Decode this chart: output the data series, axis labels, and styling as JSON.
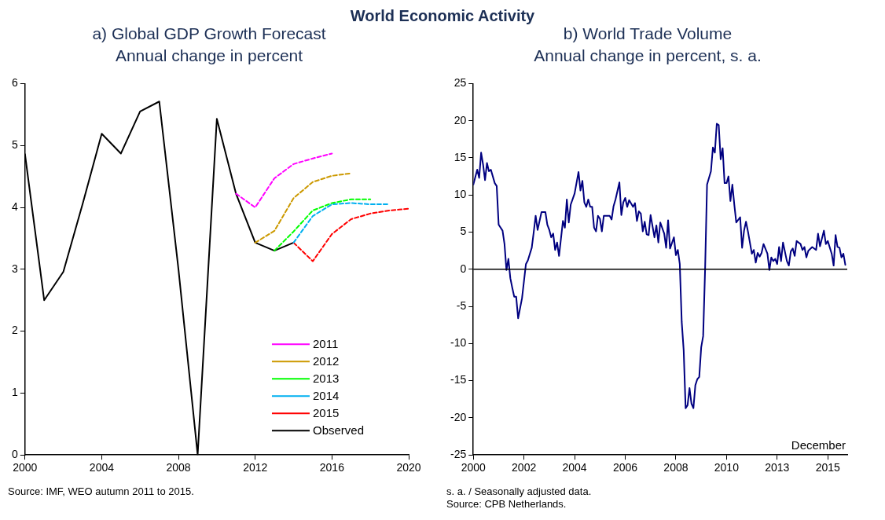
{
  "chart_data": [
    {
      "type": "other",
      "title": "World Economic Activity"
    },
    {
      "type": "line",
      "title": "a) Global GDP Growth Forecast",
      "subtitle": "Annual change in percent",
      "xlim": [
        2000,
        2020
      ],
      "xticks": [
        2000,
        2004,
        2008,
        2012,
        2016,
        2020
      ],
      "ylim": [
        0,
        6
      ],
      "yticks": [
        0,
        1,
        2,
        3,
        4,
        5,
        6
      ],
      "grid": false,
      "legend": "bottom right",
      "marker": "none",
      "series": [
        {
          "name": "2011",
          "color": "#ff00ff",
          "line_style": "dashed",
          "x": [
            2011,
            2012,
            2013,
            2014,
            2015,
            2016
          ],
          "values": [
            4.22,
            4.0,
            4.47,
            4.7,
            4.79,
            4.87
          ]
        },
        {
          "name": "2012",
          "color": "#cc9900",
          "line_style": "dashed",
          "x": [
            2012,
            2013,
            2014,
            2015,
            2016,
            2017
          ],
          "values": [
            3.43,
            3.62,
            4.15,
            4.41,
            4.51,
            4.55
          ]
        },
        {
          "name": "2013",
          "color": "#00ff00",
          "line_style": "dashed",
          "x": [
            2013,
            2014,
            2015,
            2016,
            2017,
            2018
          ],
          "values": [
            3.3,
            3.61,
            3.95,
            4.07,
            4.13,
            4.13
          ]
        },
        {
          "name": "2014",
          "color": "#00b0f0",
          "line_style": "dashed",
          "x": [
            2014,
            2015,
            2016,
            2017,
            2018,
            2019
          ],
          "values": [
            3.43,
            3.86,
            4.05,
            4.07,
            4.05,
            4.05
          ]
        },
        {
          "name": "2015",
          "color": "#ff0000",
          "line_style": "dashed",
          "x": [
            2014,
            2015,
            2016,
            2017,
            2018,
            2019,
            2020
          ],
          "values": [
            3.43,
            3.13,
            3.57,
            3.81,
            3.9,
            3.95,
            3.98
          ]
        },
        {
          "name": "Observed",
          "color": "#000000",
          "line_style": "solid",
          "x": [
            2000,
            2001,
            2002,
            2003,
            2004,
            2005,
            2006,
            2007,
            2008,
            2009,
            2010,
            2011,
            2012,
            2013,
            2014
          ],
          "values": [
            4.86,
            2.5,
            2.96,
            4.05,
            5.19,
            4.87,
            5.55,
            5.71,
            3.0,
            0.0,
            5.43,
            4.22,
            3.43,
            3.3,
            3.43
          ]
        }
      ],
      "annotations": [
        "Source: IMF, WEO autumn 2011 to 2015."
      ]
    },
    {
      "type": "line",
      "title": "b) World Trade Volume",
      "subtitle": "Annual change in percent, s. a.",
      "xlim": [
        "2000-01",
        "2016-01"
      ],
      "xticks": [
        {
          "value": "2000-01",
          "label": "2000"
        },
        {
          "value": "2002-03",
          "label": "2002"
        },
        {
          "value": "2004-05",
          "label": "2004"
        },
        {
          "value": "2006-07",
          "label": "2006"
        },
        {
          "value": "2008-09",
          "label": "2008"
        },
        {
          "value": "2010-11",
          "label": "2010"
        },
        {
          "value": "2013-01",
          "label": "2013"
        },
        {
          "value": "2015-03",
          "label": "2015"
        }
      ],
      "ylim": [
        -25,
        25
      ],
      "yticks": [
        -25,
        -20,
        -15,
        -10,
        -5,
        0,
        5,
        10,
        15,
        20,
        25
      ],
      "grid": false,
      "legend": false,
      "marker": "none",
      "ref_lines": [
        {
          "axis": "y",
          "value": 0,
          "color": "#000000"
        }
      ],
      "series": [
        {
          "color": "#000080",
          "line_style": "solid",
          "x": [
            "2000-01",
            "2000-02",
            "2000-03",
            "2000-04",
            "2000-05",
            "2000-06",
            "2000-07",
            "2000-08",
            "2000-09",
            "2000-10",
            "2000-12",
            "2001-01",
            "2001-02",
            "2001-04",
            "2001-05",
            "2001-06",
            "2001-07",
            "2001-08",
            "2001-09",
            "2001-10",
            "2001-11",
            "2001-12",
            "2002-02",
            "2002-03",
            "2002-04",
            "2002-05",
            "2002-07",
            "2002-08",
            "2002-09",
            "2002-10",
            "2002-12",
            "2003-02",
            "2003-03",
            "2003-04",
            "2003-05",
            "2003-06",
            "2003-07",
            "2003-08",
            "2003-09",
            "2003-11",
            "2003-12",
            "2004-01",
            "2004-02",
            "2004-03",
            "2004-05",
            "2004-07",
            "2004-08",
            "2004-09",
            "2004-10",
            "2004-11",
            "2004-12",
            "2005-01",
            "2005-02",
            "2005-03",
            "2005-04",
            "2005-05",
            "2005-06",
            "2005-07",
            "2005-08",
            "2005-11",
            "2005-12",
            "2006-01",
            "2006-02",
            "2006-04",
            "2006-05",
            "2006-06",
            "2006-07",
            "2006-08",
            "2006-09",
            "2006-11",
            "2006-12",
            "2007-01",
            "2007-02",
            "2007-03",
            "2007-04",
            "2007-05",
            "2007-06",
            "2007-07",
            "2007-08",
            "2007-10",
            "2007-11",
            "2007-12",
            "2008-01",
            "2008-03",
            "2008-04",
            "2008-05",
            "2008-06",
            "2008-08",
            "2008-09",
            "2008-10",
            "2008-11",
            "2008-12",
            "2009-01",
            "2009-02",
            "2009-03",
            "2009-04",
            "2009-05",
            "2009-06",
            "2009-07",
            "2009-08",
            "2009-09",
            "2009-10",
            "2009-11",
            "2009-12",
            "2010-01",
            "2010-03",
            "2010-04",
            "2010-05",
            "2010-06",
            "2010-07",
            "2010-08",
            "2010-09",
            "2010-10",
            "2010-11",
            "2010-12",
            "2011-01",
            "2011-02",
            "2011-03",
            "2011-04",
            "2011-06",
            "2011-07",
            "2011-08",
            "2011-09",
            "2011-10",
            "2011-12",
            "2012-01",
            "2012-02",
            "2012-03",
            "2012-04",
            "2012-05",
            "2012-06",
            "2012-08",
            "2012-09",
            "2012-10",
            "2012-11",
            "2012-12",
            "2013-01",
            "2013-02",
            "2013-03",
            "2013-04",
            "2013-06",
            "2013-07",
            "2013-08",
            "2013-09",
            "2013-10",
            "2013-11",
            "2014-01",
            "2014-02",
            "2014-03",
            "2014-04",
            "2014-05",
            "2014-07",
            "2014-09",
            "2014-10",
            "2014-11",
            "2015-01",
            "2015-02",
            "2015-03",
            "2015-05",
            "2015-06",
            "2015-07",
            "2015-08",
            "2015-09",
            "2015-10",
            "2015-11",
            "2015-12"
          ],
          "values": [
            11.4,
            12.4,
            13.4,
            12.3,
            15.7,
            14.1,
            12.0,
            14.3,
            13.2,
            13.4,
            11.6,
            11.2,
            6.0,
            5.2,
            3.4,
            -0.1,
            1.4,
            -1.2,
            -2.5,
            -3.7,
            -3.7,
            -6.6,
            -3.9,
            -1.6,
            0.7,
            1.2,
            2.9,
            5.0,
            7.2,
            5.3,
            7.7,
            7.7,
            6.0,
            5.3,
            4.3,
            4.8,
            2.6,
            3.6,
            1.8,
            6.5,
            5.6,
            9.4,
            6.3,
            8.7,
            10.2,
            13.1,
            10.6,
            11.9,
            9.0,
            8.4,
            9.4,
            8.4,
            8.4,
            5.6,
            5.1,
            7.2,
            6.8,
            5.1,
            7.2,
            7.2,
            6.7,
            8.5,
            9.4,
            11.7,
            7.3,
            9.0,
            9.6,
            8.4,
            9.3,
            8.4,
            8.9,
            6.5,
            7.8,
            7.5,
            5.1,
            6.4,
            4.7,
            4.6,
            7.3,
            4.3,
            5.9,
            3.6,
            6.3,
            4.8,
            2.9,
            6.6,
            2.8,
            4.3,
            1.9,
            2.6,
            0.7,
            -7.1,
            -10.9,
            -18.7,
            -18.3,
            -16.0,
            -18.1,
            -18.7,
            -15.6,
            -14.8,
            -14.5,
            -10.5,
            -9.0,
            0.0,
            11.4,
            13.2,
            16.4,
            15.7,
            19.6,
            19.4,
            14.8,
            16.3,
            11.6,
            11.6,
            12.5,
            9.2,
            11.4,
            8.7,
            6.3,
            7.0,
            2.9,
            5.2,
            6.4,
            5.1,
            2.1,
            2.6,
            0.9,
            2.2,
            1.7,
            2.2,
            3.4,
            2.1,
            -0.1,
            1.6,
            1.1,
            1.4,
            0.7,
            3.0,
            1.1,
            3.6,
            1.1,
            0.5,
            2.4,
            2.8,
            1.8,
            3.8,
            3.4,
            2.6,
            3.0,
            1.6,
            2.5,
            3.0,
            2.6,
            4.8,
            3.1,
            5.2,
            3.4,
            3.8,
            2.1,
            0.5,
            4.6,
            3.0,
            2.9,
            1.6,
            2.1,
            0.6
          ]
        }
      ],
      "annotations": [
        "December",
        "s. a. / Seasonally adjusted data.",
        "Source: CPB Netherlands."
      ]
    }
  ]
}
